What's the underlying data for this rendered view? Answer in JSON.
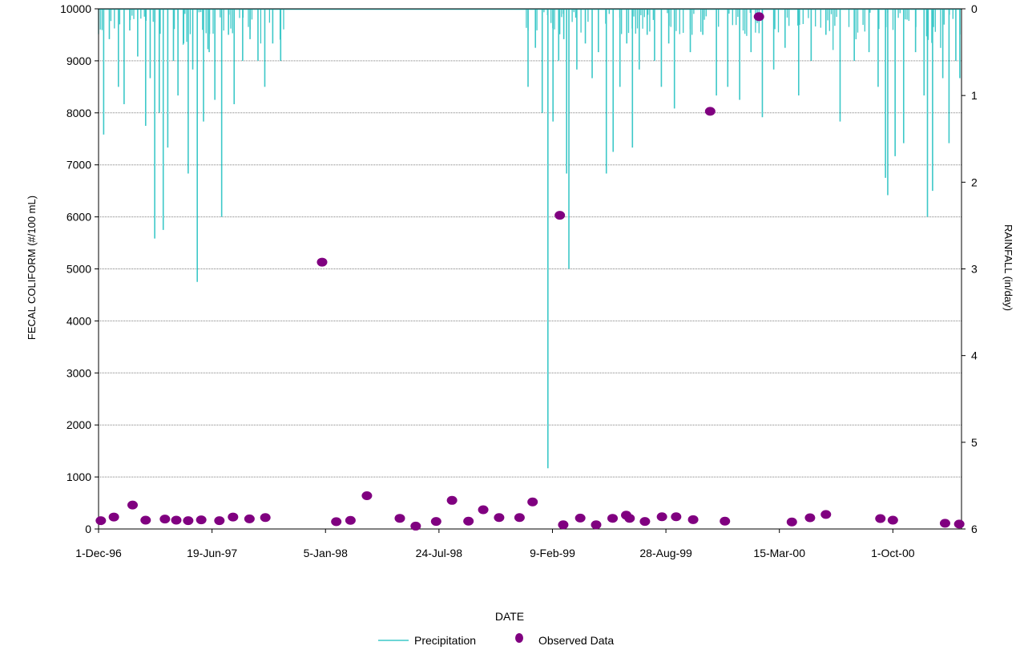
{
  "chart_data": {
    "type": "line",
    "title": "",
    "xlabel": "DATE",
    "ylabel_left": "FECAL COLIFORM (#/100 mL)",
    "ylabel_right": "RAINFALL (in/day)",
    "xlim": [
      "1996-12-01",
      "2001-01-30"
    ],
    "ylim_left": [
      0,
      10000
    ],
    "ylim_right": [
      6,
      0
    ],
    "right_axis_inverted": true,
    "grid": "horizontal",
    "x_ticks": [
      {
        "date": "1996-12-01",
        "label": "1-Dec-96"
      },
      {
        "date": "1997-06-19",
        "label": "19-Jun-97"
      },
      {
        "date": "1998-01-05",
        "label": "5-Jan-98"
      },
      {
        "date": "1998-07-24",
        "label": "24-Jul-98"
      },
      {
        "date": "1999-02-09",
        "label": "9-Feb-99"
      },
      {
        "date": "1999-08-28",
        "label": "28-Aug-99"
      },
      {
        "date": "2000-03-15",
        "label": "15-Mar-00"
      },
      {
        "date": "2000-10-01",
        "label": "1-Oct-00"
      }
    ],
    "y_left_ticks": [
      "0",
      "1000",
      "2000",
      "3000",
      "4000",
      "5000",
      "6000",
      "7000",
      "8000",
      "9000",
      "10000"
    ],
    "y_right_ticks": [
      "0",
      "1",
      "2",
      "3",
      "4",
      "5",
      "6"
    ],
    "legend_position": "bottom-center",
    "series": [
      {
        "name": "Precipitation",
        "axis": "right",
        "style": "line",
        "color": "#3cc8c8",
        "gaps": [
          [
            "1997-10-25",
            "1998-12-25"
          ]
        ],
        "points": [
          {
            "x": "1996-12-10",
            "y": 1.45
          },
          {
            "x": "1996-12-20",
            "y": 0.35
          },
          {
            "x": "1997-01-05",
            "y": 0.9
          },
          {
            "x": "1997-01-15",
            "y": 1.1
          },
          {
            "x": "1997-01-25",
            "y": 0.25
          },
          {
            "x": "1997-02-08",
            "y": 0.55
          },
          {
            "x": "1997-02-22",
            "y": 1.35
          },
          {
            "x": "1997-03-02",
            "y": 0.8
          },
          {
            "x": "1997-03-10",
            "y": 2.65
          },
          {
            "x": "1997-03-18",
            "y": 1.2
          },
          {
            "x": "1997-03-25",
            "y": 2.55
          },
          {
            "x": "1997-04-02",
            "y": 1.6
          },
          {
            "x": "1997-04-12",
            "y": 0.6
          },
          {
            "x": "1997-04-20",
            "y": 1.0
          },
          {
            "x": "1997-04-30",
            "y": 0.4
          },
          {
            "x": "1997-05-08",
            "y": 1.9
          },
          {
            "x": "1997-05-16",
            "y": 0.7
          },
          {
            "x": "1997-05-24",
            "y": 3.15
          },
          {
            "x": "1997-06-04",
            "y": 1.3
          },
          {
            "x": "1997-06-14",
            "y": 0.5
          },
          {
            "x": "1997-06-24",
            "y": 1.05
          },
          {
            "x": "1997-07-06",
            "y": 2.4
          },
          {
            "x": "1997-07-18",
            "y": 0.3
          },
          {
            "x": "1997-07-28",
            "y": 1.1
          },
          {
            "x": "1997-08-12",
            "y": 0.6
          },
          {
            "x": "1997-08-25",
            "y": 0.35
          },
          {
            "x": "1997-09-08",
            "y": 0.6
          },
          {
            "x": "1997-09-20",
            "y": 0.9
          },
          {
            "x": "1997-10-04",
            "y": 0.4
          },
          {
            "x": "1997-10-18",
            "y": 0.6
          },
          {
            "x": "1998-12-28",
            "y": 0.9
          },
          {
            "x": "1999-01-10",
            "y": 0.45
          },
          {
            "x": "1999-01-22",
            "y": 1.2
          },
          {
            "x": "1999-02-01",
            "y": 5.3
          },
          {
            "x": "1999-02-10",
            "y": 1.3
          },
          {
            "x": "1999-02-20",
            "y": 0.6
          },
          {
            "x": "1999-03-01",
            "y": 0.35
          },
          {
            "x": "1999-03-06",
            "y": 1.9
          },
          {
            "x": "1999-03-10",
            "y": 3.0
          },
          {
            "x": "1999-03-24",
            "y": 0.7
          },
          {
            "x": "1999-04-08",
            "y": 0.4
          },
          {
            "x": "1999-04-20",
            "y": 0.8
          },
          {
            "x": "1999-05-01",
            "y": 0.5
          },
          {
            "x": "1999-05-15",
            "y": 1.9
          },
          {
            "x": "1999-05-27",
            "y": 1.65
          },
          {
            "x": "1999-06-08",
            "y": 0.9
          },
          {
            "x": "1999-06-20",
            "y": 0.4
          },
          {
            "x": "1999-06-30",
            "y": 1.6
          },
          {
            "x": "1999-07-12",
            "y": 0.7
          },
          {
            "x": "1999-07-26",
            "y": 0.3
          },
          {
            "x": "1999-08-08",
            "y": 0.6
          },
          {
            "x": "1999-08-20",
            "y": 0.9
          },
          {
            "x": "1999-09-02",
            "y": 0.4
          },
          {
            "x": "1999-09-12",
            "y": 1.15
          },
          {
            "x": "1999-10-10",
            "y": 0.5
          },
          {
            "x": "1999-11-01",
            "y": 0.3
          },
          {
            "x": "1999-11-25",
            "y": 1.0
          },
          {
            "x": "1999-12-15",
            "y": 0.9
          },
          {
            "x": "2000-01-05",
            "y": 1.05
          },
          {
            "x": "2000-01-25",
            "y": 0.5
          },
          {
            "x": "2000-02-14",
            "y": 1.25
          },
          {
            "x": "2000-03-05",
            "y": 0.7
          },
          {
            "x": "2000-03-25",
            "y": 0.45
          },
          {
            "x": "2000-04-18",
            "y": 1.0
          },
          {
            "x": "2000-05-10",
            "y": 0.6
          },
          {
            "x": "2000-06-05",
            "y": 0.3
          },
          {
            "x": "2000-06-30",
            "y": 1.3
          },
          {
            "x": "2000-07-25",
            "y": 0.6
          },
          {
            "x": "2000-08-20",
            "y": 0.5
          },
          {
            "x": "2000-09-05",
            "y": 0.9
          },
          {
            "x": "2000-09-18",
            "y": 1.95
          },
          {
            "x": "2000-09-22",
            "y": 2.15
          },
          {
            "x": "2000-10-05",
            "y": 1.7
          },
          {
            "x": "2000-10-20",
            "y": 1.55
          },
          {
            "x": "2000-11-10",
            "y": 0.5
          },
          {
            "x": "2000-11-25",
            "y": 1.0
          },
          {
            "x": "2000-12-01",
            "y": 2.4
          },
          {
            "x": "2000-12-10",
            "y": 2.1
          },
          {
            "x": "2000-12-28",
            "y": 0.8
          },
          {
            "x": "2001-01-08",
            "y": 1.55
          },
          {
            "x": "2001-01-20",
            "y": 0.6
          },
          {
            "x": "2001-01-27",
            "y": 0.8
          }
        ]
      },
      {
        "name": "Observed Data",
        "axis": "left",
        "style": "marker",
        "color": "#800080",
        "points": [
          {
            "x": "1996-12-05",
            "y": 160
          },
          {
            "x": "1996-12-28",
            "y": 230
          },
          {
            "x": "1997-01-30",
            "y": 460
          },
          {
            "x": "1997-02-22",
            "y": 170
          },
          {
            "x": "1997-03-28",
            "y": 190
          },
          {
            "x": "1997-04-17",
            "y": 170
          },
          {
            "x": "1997-05-08",
            "y": 160
          },
          {
            "x": "1997-05-31",
            "y": 175
          },
          {
            "x": "1997-07-02",
            "y": 160
          },
          {
            "x": "1997-07-26",
            "y": 230
          },
          {
            "x": "1997-08-24",
            "y": 195
          },
          {
            "x": "1997-09-21",
            "y": 220
          },
          {
            "x": "1997-12-30",
            "y": 5130
          },
          {
            "x": "1998-01-24",
            "y": 140
          },
          {
            "x": "1998-02-18",
            "y": 165
          },
          {
            "x": "1998-03-19",
            "y": 640
          },
          {
            "x": "1998-05-16",
            "y": 205
          },
          {
            "x": "1998-06-13",
            "y": 55
          },
          {
            "x": "1998-07-19",
            "y": 145
          },
          {
            "x": "1998-08-16",
            "y": 550
          },
          {
            "x": "1998-09-14",
            "y": 150
          },
          {
            "x": "1998-10-10",
            "y": 370
          },
          {
            "x": "1998-11-07",
            "y": 220
          },
          {
            "x": "1998-12-13",
            "y": 220
          },
          {
            "x": "1999-01-05",
            "y": 520
          },
          {
            "x": "1999-02-22",
            "y": 6030
          },
          {
            "x": "1999-02-28",
            "y": 80
          },
          {
            "x": "1999-03-30",
            "y": 210
          },
          {
            "x": "1999-04-27",
            "y": 80
          },
          {
            "x": "1999-05-26",
            "y": 205
          },
          {
            "x": "1999-06-19",
            "y": 265
          },
          {
            "x": "1999-06-25",
            "y": 205
          },
          {
            "x": "1999-07-22",
            "y": 145
          },
          {
            "x": "1999-08-21",
            "y": 235
          },
          {
            "x": "1999-09-15",
            "y": 235
          },
          {
            "x": "1999-10-15",
            "y": 180
          },
          {
            "x": "1999-11-14",
            "y": 8030
          },
          {
            "x": "1999-12-10",
            "y": 150
          },
          {
            "x": "2000-02-08",
            "y": 9850
          },
          {
            "x": "2000-04-06",
            "y": 135
          },
          {
            "x": "2000-05-08",
            "y": 215
          },
          {
            "x": "2000-06-05",
            "y": 280
          },
          {
            "x": "2000-09-09",
            "y": 200
          },
          {
            "x": "2000-10-01",
            "y": 170
          },
          {
            "x": "2001-01-01",
            "y": 110
          },
          {
            "x": "2001-01-26",
            "y": 95
          }
        ]
      }
    ]
  }
}
